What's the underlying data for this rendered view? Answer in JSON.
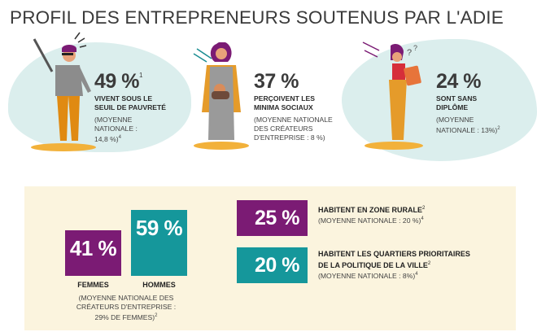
{
  "title": "PROFIL DES ENTREPRENEURS SOUTENUS PAR L'ADIE",
  "colors": {
    "purple": "#7b1b74",
    "teal": "#15979b",
    "panel": "#fbf4de",
    "blob": "#dbeeed",
    "ground": "#f2b13a"
  },
  "top_stats": [
    {
      "value": "49 %",
      "ref": "1",
      "caption": [
        "VIVENT SOUS LE",
        "SEUIL DE PAUVRETÉ"
      ],
      "note": [
        "(MOYENNE",
        "NATIONALE :",
        "14,8 %)"
      ],
      "note_ref": "4",
      "icon": "man-pointing-illustration"
    },
    {
      "value": "37 %",
      "caption": [
        "PERÇOIVENT LES",
        "MINIMA SOCIAUX"
      ],
      "note": [
        "(MOYENNE NATIONALE",
        "DES CRÉATEURS",
        "D'ENTREPRISE : 8 %)"
      ],
      "icon": "woman-holding-baby-illustration"
    },
    {
      "value": "24 %",
      "caption": [
        "SONT SANS",
        "DIPLÔME"
      ],
      "note": [
        "(MOYENNE",
        "NATIONALE : 13%)"
      ],
      "note_ref": "2",
      "icon": "woman-reading-illustration"
    }
  ],
  "gender": {
    "femmes": {
      "value": "41 %",
      "label": "FEMMES"
    },
    "hommes": {
      "value": "59 %",
      "label": "HOMMES"
    },
    "note": [
      "(MOYENNE NATIONALE DES",
      "CRÉATEURS D'ENTREPRISE :",
      "29% DE FEMMES)"
    ],
    "note_ref": "2"
  },
  "areas": [
    {
      "value": "25 %",
      "label": [
        "HABITENT EN ZONE RURALE"
      ],
      "label_ref": "2",
      "note": "(MOYENNE NATIONALE : 20 %)",
      "note_ref": "4"
    },
    {
      "value": "20 %",
      "label": [
        "HABITENT LES QUARTIERS PRIORITAIRES",
        "DE LA POLITIQUE DE LA VILLE"
      ],
      "label_ref": "2",
      "note": "(MOYENNE NATIONALE : 8%)",
      "note_ref": "4"
    }
  ]
}
